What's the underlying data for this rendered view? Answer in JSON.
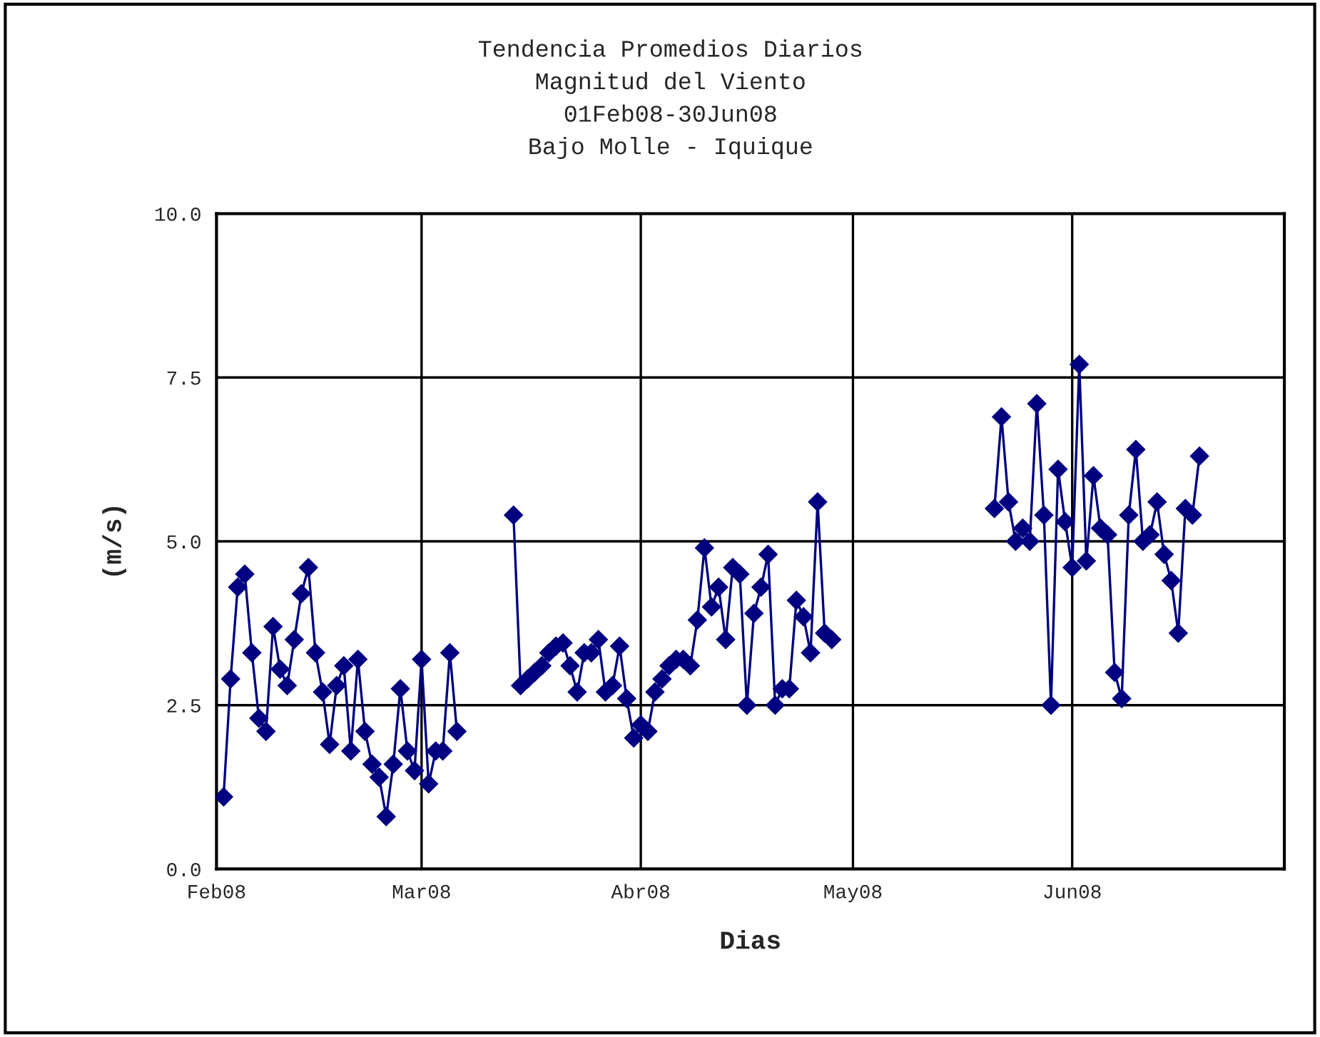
{
  "chart_data": {
    "type": "line",
    "title": "Tendencia Promedios Diarios",
    "subtitle": "Magnitud del Viento\n01Feb08-30Jun08\nBajo Molle - Iquique",
    "xlabel": "Dias",
    "ylabel": "(m/s)",
    "xlim": [
      "2008-02-01",
      "2008-07-01"
    ],
    "xticks": [
      {
        "value": "2008-02-01",
        "label": "Feb08"
      },
      {
        "value": "2008-03-01",
        "label": "Mar08"
      },
      {
        "value": "2008-04-01",
        "label": "Abr08"
      },
      {
        "value": "2008-05-01",
        "label": "May08"
      },
      {
        "value": "2008-06-01",
        "label": "Jun08"
      }
    ],
    "ylim": [
      0,
      10
    ],
    "yticks": [
      {
        "value": 0,
        "label": "0.0"
      },
      {
        "value": 2.5,
        "label": "2.5"
      },
      {
        "value": 5,
        "label": "5.0"
      },
      {
        "value": 7.5,
        "label": "7.5"
      },
      {
        "value": 10,
        "label": "10.0"
      }
    ],
    "grid": true,
    "marker": "diamond",
    "line_style": "solid",
    "series": [
      {
        "color": "#000080",
        "x": [
          "2008-02-02",
          "2008-02-03",
          "2008-02-04",
          "2008-02-05",
          "2008-02-06",
          "2008-02-07",
          "2008-02-08",
          "2008-02-09",
          "2008-02-10",
          "2008-02-11",
          "2008-02-12",
          "2008-02-13",
          "2008-02-14",
          "2008-02-15",
          "2008-02-16",
          "2008-02-17",
          "2008-02-18",
          "2008-02-19",
          "2008-02-20",
          "2008-02-21",
          "2008-02-22",
          "2008-02-23",
          "2008-02-24",
          "2008-02-25",
          "2008-02-26",
          "2008-02-27",
          "2008-02-28",
          "2008-02-29",
          "2008-03-01",
          "2008-03-02",
          "2008-03-03",
          "2008-03-04",
          "2008-03-05",
          "2008-03-06",
          "2008-03-07",
          "2008-03-14",
          "2008-03-15",
          "2008-03-16",
          "2008-03-17",
          "2008-03-18",
          "2008-03-19",
          "2008-03-20",
          "2008-03-21",
          "2008-03-22",
          "2008-03-23",
          "2008-03-24",
          "2008-03-25",
          "2008-03-26",
          "2008-03-27",
          "2008-03-28",
          "2008-03-29",
          "2008-03-30",
          "2008-03-31",
          "2008-04-01",
          "2008-04-02",
          "2008-04-03",
          "2008-04-04",
          "2008-04-05",
          "2008-04-06",
          "2008-04-07",
          "2008-04-08",
          "2008-04-09",
          "2008-04-10",
          "2008-04-11",
          "2008-04-12",
          "2008-04-13",
          "2008-04-14",
          "2008-04-15",
          "2008-04-16",
          "2008-04-17",
          "2008-04-18",
          "2008-04-19",
          "2008-04-20",
          "2008-04-21",
          "2008-04-22",
          "2008-04-23",
          "2008-04-24",
          "2008-04-25",
          "2008-04-26",
          "2008-04-27",
          "2008-04-28",
          "2008-04-29",
          "2008-05-21",
          "2008-05-22",
          "2008-05-23",
          "2008-05-24",
          "2008-05-25",
          "2008-05-26",
          "2008-05-27",
          "2008-05-28",
          "2008-05-29",
          "2008-05-30",
          "2008-05-31",
          "2008-06-01",
          "2008-06-02",
          "2008-06-03",
          "2008-06-04",
          "2008-06-05",
          "2008-06-06",
          "2008-06-07",
          "2008-06-08",
          "2008-06-09",
          "2008-06-10",
          "2008-06-11",
          "2008-06-12",
          "2008-06-13",
          "2008-06-14",
          "2008-06-15",
          "2008-06-16",
          "2008-06-17",
          "2008-06-18",
          "2008-06-19"
        ],
        "values": [
          1.1,
          2.9,
          4.3,
          4.5,
          3.3,
          2.3,
          2.1,
          3.7,
          3.05,
          2.8,
          3.5,
          4.2,
          4.6,
          3.3,
          2.7,
          1.9,
          2.8,
          3.1,
          1.8,
          3.2,
          2.1,
          1.6,
          1.4,
          0.8,
          1.6,
          2.75,
          1.8,
          1.5,
          3.2,
          1.3,
          1.8,
          1.8,
          3.3,
          2.1,
          null,
          5.4,
          2.8,
          2.9,
          3.0,
          3.1,
          3.3,
          3.4,
          3.45,
          3.1,
          2.7,
          3.3,
          3.3,
          3.5,
          2.7,
          2.8,
          3.4,
          2.6,
          2.0,
          2.2,
          2.1,
          2.7,
          2.9,
          3.1,
          3.2,
          3.2,
          3.1,
          3.8,
          4.9,
          4.0,
          4.3,
          3.5,
          4.6,
          4.5,
          2.5,
          3.9,
          4.3,
          4.8,
          2.5,
          2.75,
          2.75,
          4.1,
          3.85,
          3.3,
          5.6,
          3.6,
          3.5,
          null,
          5.5,
          6.9,
          5.6,
          5.0,
          5.2,
          5.0,
          7.1,
          5.4,
          2.5,
          6.1,
          5.3,
          4.6,
          7.7,
          4.7,
          6.0,
          5.2,
          5.1,
          3.0,
          2.6,
          5.4,
          6.4,
          5.0,
          5.1,
          5.6,
          4.8,
          4.4,
          3.6,
          5.5,
          5.4,
          6.3
        ]
      }
    ]
  }
}
